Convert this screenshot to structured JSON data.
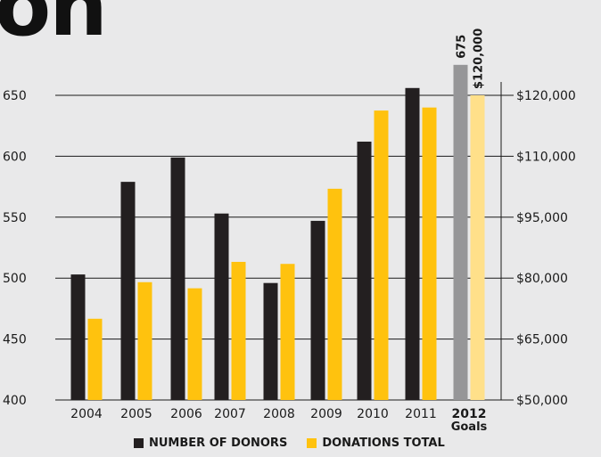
{
  "header": {
    "title_fragment": "on"
  },
  "chart_data": {
    "type": "bar",
    "categories": [
      "2004",
      "2005",
      "2006",
      "2007",
      "2008",
      "2009",
      "2010",
      "2011",
      "2012"
    ],
    "category_sublabels": {
      "2012": "Goals"
    },
    "highlighted_category": "2012",
    "series": [
      {
        "name": "NUMBER OF DONORS",
        "axis": "left",
        "color": "#231f20",
        "highlight_color": "#969698",
        "values": [
          503,
          579,
          599,
          553,
          496,
          547,
          612,
          656,
          675
        ],
        "data_labels": {
          "2012": "675"
        }
      },
      {
        "name": "DONATIONS TOTAL",
        "axis": "right",
        "color": "#ffc20e",
        "highlight_color": "#ffe08a",
        "values": [
          70000,
          79000,
          77500,
          84000,
          83500,
          102000,
          117500,
          118000,
          120000
        ],
        "data_labels": {
          "2012": "$120,000"
        }
      }
    ],
    "y_left": {
      "ticks": [
        400,
        450,
        500,
        550,
        600,
        650
      ],
      "tick_labels": [
        "400",
        "450",
        "500",
        "550",
        "600",
        "650"
      ],
      "ylim": [
        400,
        650
      ]
    },
    "y_right": {
      "tick_labels": [
        "$50,000",
        "$65,000",
        "$80,000",
        "$95,000",
        "$110,000",
        "$120,000"
      ],
      "tick_values": [
        50000,
        65000,
        80000,
        95000,
        110000,
        120000
      ]
    },
    "grid": true,
    "legend_position": "bottom",
    "xlabel": "",
    "ylabel": ""
  }
}
